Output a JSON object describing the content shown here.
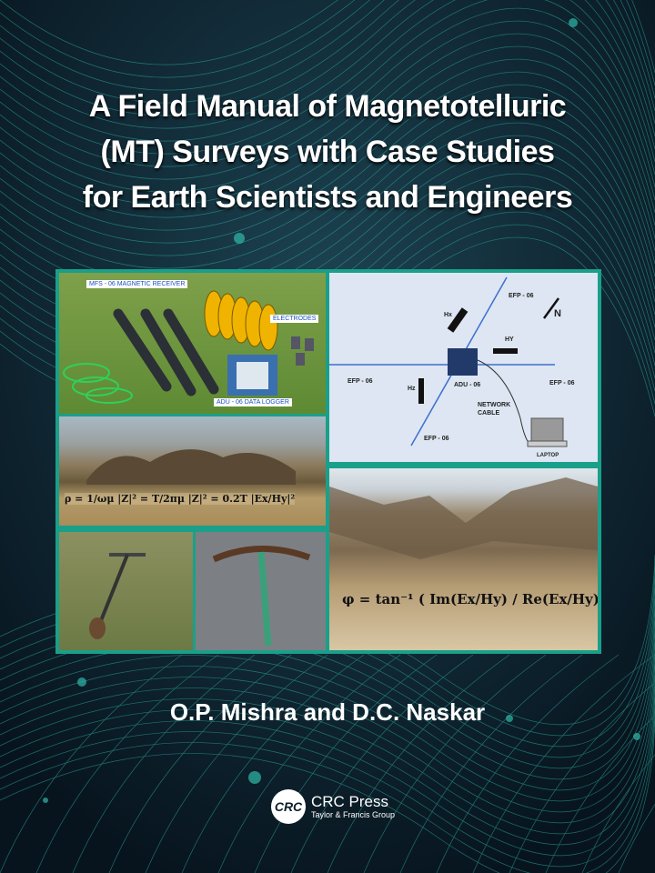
{
  "title_lines": [
    "A Field Manual of Magnetotelluric",
    "(MT) Surveys with Case Studies",
    "for Earth Scientists and Engineers"
  ],
  "authors": "O.P. Mishra and D.C. Naskar",
  "publisher": {
    "name": "CRC Press",
    "sub": "Taylor & Francis Group",
    "logo": "CRC"
  },
  "photo_equipment": {
    "labels": [
      "MFS - 06 MAGNETIC RECEIVER",
      "ELECTRODES",
      "ADU - 06 DATA LOGGER"
    ]
  },
  "diagram": {
    "labels": {
      "efp_top": "EFP - 06",
      "efp_left": "EFP - 06",
      "efp_right": "EFP - 06",
      "efp_bottom": "EFP - 06",
      "hx": "Hx",
      "hy": "HY",
      "hz": "Hz",
      "adu": "ADU - 06",
      "north": "N",
      "network": "NETWORK",
      "cable": "CABLE",
      "laptop": "LAPTOP"
    }
  },
  "formula_resistivity": "ρ = 1/ωμ |Z|² = T/2πμ |Z|² = 0.2T |Ex/Hy|²",
  "formula_phase": "φ = tan⁻¹ ( Im(Ex/Hy) / Re(Ex/Hy) )",
  "colors": {
    "background": "#0b1e2c",
    "frame": "#1a9f8a",
    "accent_lines": "#2fb8a8"
  }
}
